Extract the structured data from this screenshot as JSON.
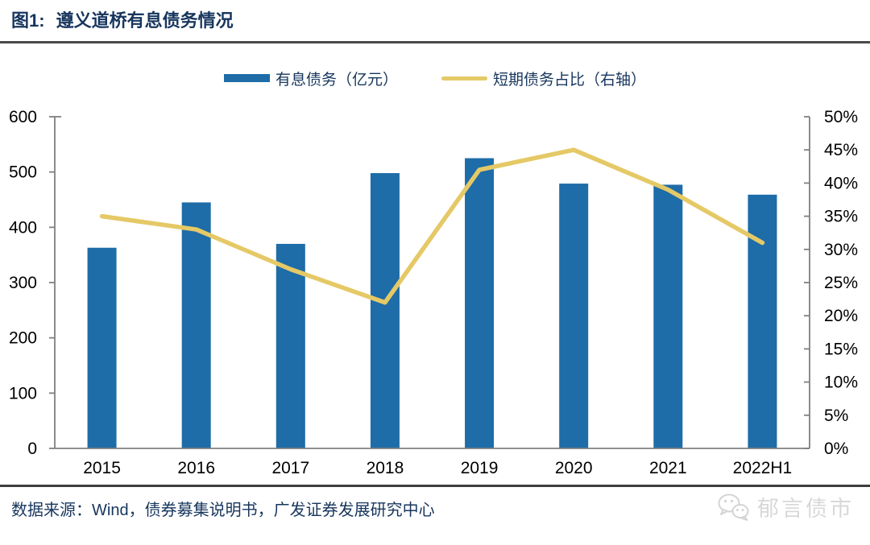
{
  "header": {
    "figure_label": "图1:",
    "title": "遵义道桥有息债务情况"
  },
  "legend": [
    {
      "label": "有息债务（亿元）",
      "type": "bar",
      "color": "#1E6CA8"
    },
    {
      "label": "短期债务占比（右轴）",
      "type": "line",
      "color": "#E5C966"
    }
  ],
  "chart_data": {
    "type": "bar",
    "categories": [
      "2015",
      "2016",
      "2017",
      "2018",
      "2019",
      "2020",
      "2021",
      "2022H1"
    ],
    "series": [
      {
        "name": "有息债务（亿元）",
        "type": "bar",
        "axis": "left",
        "color": "#1E6CA8",
        "values": [
          363,
          445,
          370,
          498,
          525,
          479,
          477,
          459
        ]
      },
      {
        "name": "短期债务占比（右轴）",
        "type": "line",
        "axis": "right",
        "color": "#E5C966",
        "values": [
          35,
          33,
          27,
          22,
          42,
          45,
          39,
          31
        ]
      }
    ],
    "left_axis": {
      "min": 0,
      "max": 600,
      "step": 100,
      "ticks": [
        "0",
        "100",
        "200",
        "300",
        "400",
        "500",
        "600"
      ],
      "label": "有息债务（亿元）"
    },
    "right_axis": {
      "min": 0,
      "max": 50,
      "step": 5,
      "ticks": [
        "0%",
        "5%",
        "10%",
        "15%",
        "20%",
        "25%",
        "30%",
        "35%",
        "40%",
        "45%",
        "50%"
      ],
      "unit": "%",
      "label": "短期债务占比（右轴）"
    },
    "grid": false,
    "legend_position": "top",
    "axis_color": "#808080",
    "tick_label_color": "#000000"
  },
  "footer": {
    "source": "数据来源：Wind，债券募集说明书，广发证券发展研究中心"
  },
  "watermark": {
    "label": "郁言债市",
    "icon": "wechat-icon",
    "color": "#d8d8d8"
  }
}
